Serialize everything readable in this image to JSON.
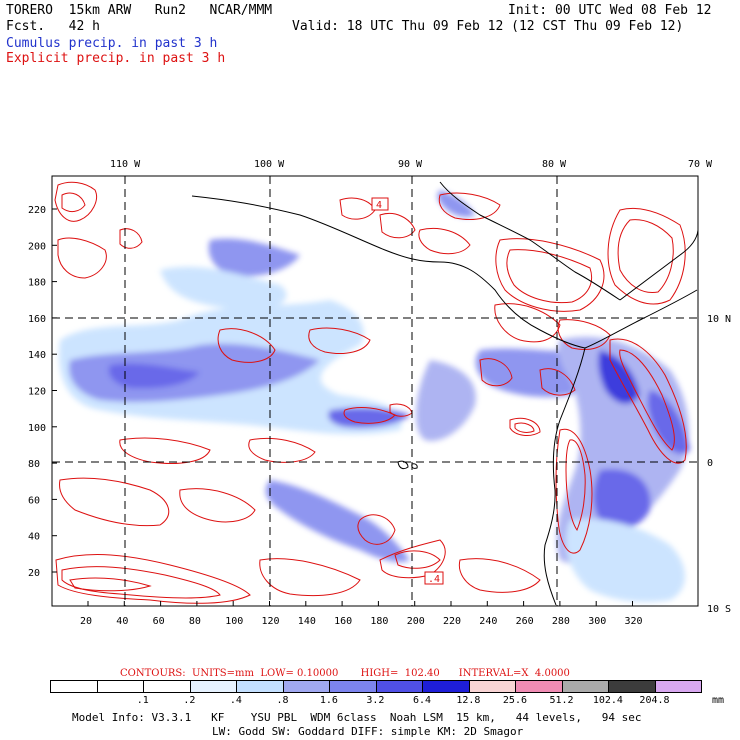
{
  "header": {
    "model": "TORERO  15km ARW   Run2   NCAR/MMM",
    "fcst": "Fcst.   42 h",
    "init": "Init: 00 UTC Wed 08 Feb 12",
    "valid": "Valid: 18 UTC Thu 09 Feb 12 (12 CST Thu 09 Feb 12)",
    "field1": "Cumulus precip. in past 3 h",
    "field2": "Explicit precip. in past 3 h"
  },
  "map": {
    "lon_labels": [
      "110 W",
      "100 W",
      "90 W",
      "80 W",
      "70 W"
    ],
    "lat_labels": [
      "10 N",
      "0",
      "10 S"
    ],
    "x_ticks": [
      "20",
      "40",
      "60",
      "80",
      "100",
      "120",
      "140",
      "160",
      "180",
      "200",
      "220",
      "240",
      "260",
      "280",
      "300",
      "320"
    ],
    "y_ticks": [
      "20",
      "40",
      "60",
      "80",
      "100",
      "120",
      "140",
      "160",
      "180",
      "200",
      "220"
    ],
    "box_labels": [
      "4",
      ".4"
    ]
  },
  "legend": {
    "contours_text": "CONTOURS:  UNITS=mm  LOW= 0.10000       HIGH=  102.40      INTERVAL=X  4.0000",
    "colors": [
      "#ffffff",
      "#ffffff",
      "#ffffff",
      "#e6f2ff",
      "#c4e0ff",
      "#a0a8f0",
      "#7c84ee",
      "#5050e6",
      "#1e1ed8",
      "#f8d4d4",
      "#f08cb4",
      "#aaaaaa",
      "#3c3c3c",
      "#d8a8f0"
    ],
    "values": [
      ".1",
      ".2",
      ".4",
      ".8",
      "1.6",
      "3.2",
      "6.4",
      "12.8",
      "25.6",
      "51.2",
      "102.4",
      "204.8"
    ],
    "unit": "mm"
  },
  "footer": {
    "line1": "Model Info: V3.3.1   KF    YSU PBL  WDM 6class  Noah LSM  15 km,   44 levels,   94 sec",
    "line2": "LW: Godd SW: Goddard DIFF: simple KM: 2D Smagor"
  }
}
